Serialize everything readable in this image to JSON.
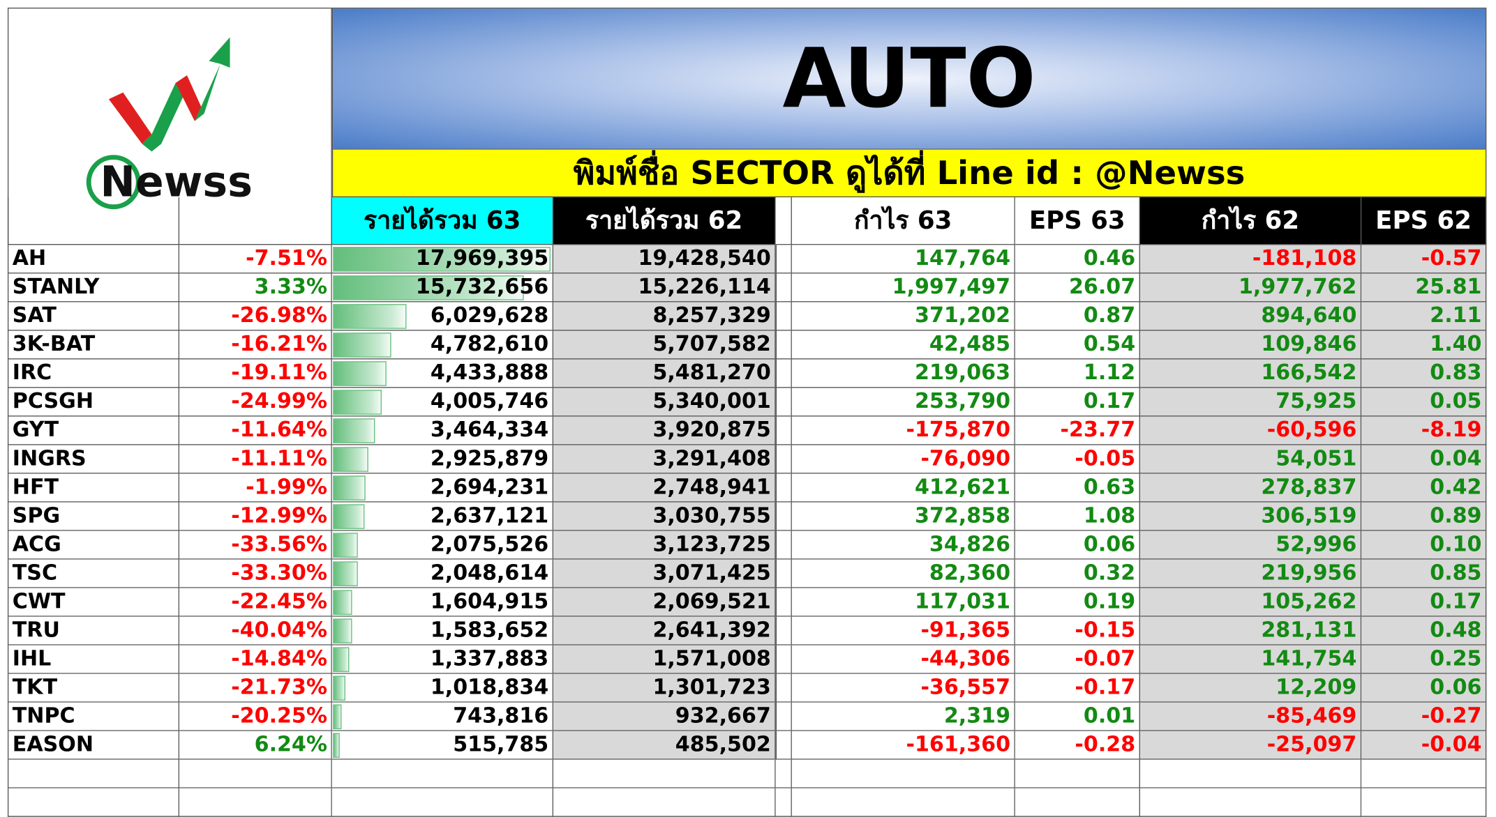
{
  "logo": "Newss",
  "header": {
    "title": "AUTO",
    "subtitle": "พิมพ์ชื่อ SECTOR ดูได้ที่ Line id : @Newss"
  },
  "table": {
    "columns": [
      "รายได้รวม 63",
      "รายได้รวม 62",
      "กำไร 63",
      "EPS 63",
      "กำไร 62",
      "EPS 62"
    ],
    "rows": [
      [
        "AH",
        "-7.51%",
        "17,969,395",
        "19,428,540",
        "147,764",
        "0.46",
        "-181,108",
        "-0.57"
      ],
      [
        "STANLY",
        "3.33%",
        "15,732,656",
        "15,226,114",
        "1,997,497",
        "26.07",
        "1,977,762",
        "25.81"
      ],
      [
        "SAT",
        "-26.98%",
        "6,029,628",
        "8,257,329",
        "371,202",
        "0.87",
        "894,640",
        "2.11"
      ],
      [
        "3K-BAT",
        "-16.21%",
        "4,782,610",
        "5,707,582",
        "42,485",
        "0.54",
        "109,846",
        "1.40"
      ],
      [
        "IRC",
        "-19.11%",
        "4,433,888",
        "5,481,270",
        "219,063",
        "1.12",
        "166,542",
        "0.83"
      ],
      [
        "PCSGH",
        "-24.99%",
        "4,005,746",
        "5,340,001",
        "253,790",
        "0.17",
        "75,925",
        "0.05"
      ],
      [
        "GYT",
        "-11.64%",
        "3,464,334",
        "3,920,875",
        "-175,870",
        "-23.77",
        "-60,596",
        "-8.19"
      ],
      [
        "INGRS",
        "-11.11%",
        "2,925,879",
        "3,291,408",
        "-76,090",
        "-0.05",
        "54,051",
        "0.04"
      ],
      [
        "HFT",
        "-1.99%",
        "2,694,231",
        "2,748,941",
        "412,621",
        "0.63",
        "278,837",
        "0.42"
      ],
      [
        "SPG",
        "-12.99%",
        "2,637,121",
        "3,030,755",
        "372,858",
        "1.08",
        "306,519",
        "0.89"
      ],
      [
        "ACG",
        "-33.56%",
        "2,075,526",
        "3,123,725",
        "34,826",
        "0.06",
        "52,996",
        "0.10"
      ],
      [
        "TSC",
        "-33.30%",
        "2,048,614",
        "3,071,425",
        "82,360",
        "0.32",
        "219,956",
        "0.85"
      ],
      [
        "CWT",
        "-22.45%",
        "1,604,915",
        "2,069,521",
        "117,031",
        "0.19",
        "105,262",
        "0.17"
      ],
      [
        "TRU",
        "-40.04%",
        "1,583,652",
        "2,641,392",
        "-91,365",
        "-0.15",
        "281,131",
        "0.48"
      ],
      [
        "IHL",
        "-14.84%",
        "1,337,883",
        "1,571,008",
        "-44,306",
        "-0.07",
        "141,754",
        "0.25"
      ],
      [
        "TKT",
        "-21.73%",
        "1,018,834",
        "1,301,723",
        "-36,557",
        "-0.17",
        "12,209",
        "0.06"
      ],
      [
        "TNPC",
        "-20.25%",
        "743,816",
        "932,667",
        "2,319",
        "0.01",
        "-85,469",
        "-0.27"
      ],
      [
        "EASON",
        "6.24%",
        "515,785",
        "485,502",
        "-161,360",
        "-0.28",
        "-25,097",
        "-0.04"
      ]
    ]
  }
}
